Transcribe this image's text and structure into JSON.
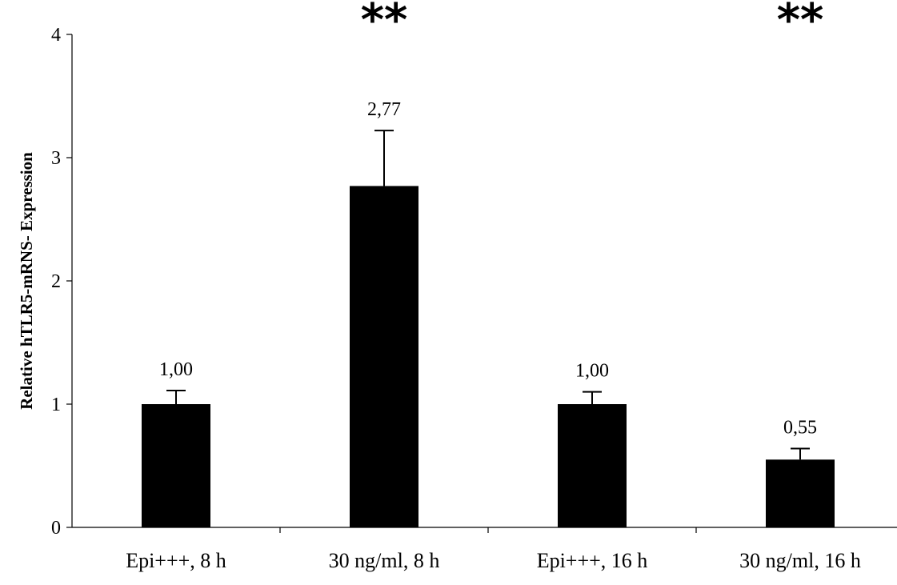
{
  "chart_data": {
    "type": "bar",
    "title": "",
    "xlabel": "",
    "ylabel": "Relative hTLR5-mRNS- Expression",
    "ylim": [
      0,
      4
    ],
    "yticks": [
      0,
      1,
      2,
      3,
      4
    ],
    "categories": [
      "Epi+++, 8 h",
      "30 ng/ml, 8 h",
      "Epi+++, 16 h",
      "30 ng/ml, 16 h"
    ],
    "values": [
      1.0,
      2.77,
      1.0,
      0.55
    ],
    "value_labels": [
      "1,00",
      "2,77",
      "1,00",
      "0,55"
    ],
    "error_upper": [
      0.11,
      0.45,
      0.1,
      0.09
    ],
    "significance": [
      "",
      "**",
      "",
      "**"
    ],
    "bar_color": "#000000",
    "grid": false,
    "legend": "none"
  }
}
